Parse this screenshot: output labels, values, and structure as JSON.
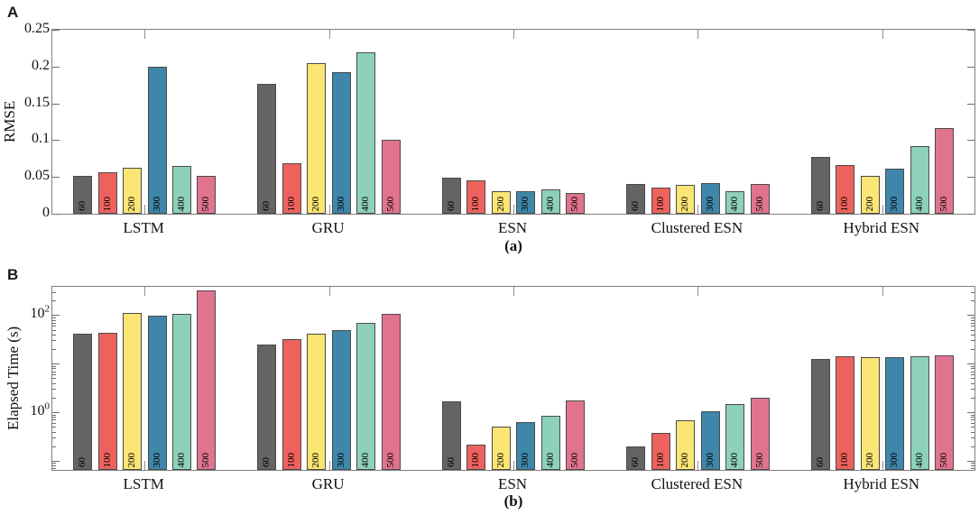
{
  "background": "#ffffff",
  "palette": {
    "60": "#646464",
    "100": "#ee625e",
    "200": "#fbe574",
    "300": "#3e86aa",
    "400": "#8dd0bc",
    "500": "#e0748f"
  },
  "style_colors": {
    "bar_edge": "#4a4a4a",
    "axis_box": "#7f7f7f",
    "text": "#111111"
  },
  "chart_data": [
    {
      "panel_label": "A",
      "caption": "(a)",
      "type": "bar",
      "yscale": "linear",
      "ylabel": "RMSE",
      "ylim": [
        0,
        0.25
      ],
      "grid": false,
      "legend": "none",
      "yticks": [
        {
          "value": 0,
          "label": "0"
        },
        {
          "value": 0.05,
          "label": "0.05"
        },
        {
          "value": 0.1,
          "label": "0.1"
        },
        {
          "value": 0.15,
          "label": "0.15"
        },
        {
          "value": 0.2,
          "label": "0.2"
        },
        {
          "value": 0.25,
          "label": "0.25"
        }
      ],
      "categories": [
        "LSTM",
        "GRU",
        "ESN",
        "Clustered ESN",
        "Hybrid ESN"
      ],
      "bar_size_labels": [
        "60",
        "100",
        "200",
        "300",
        "400",
        "500"
      ],
      "series": [
        {
          "name": "60",
          "values": [
            0.051,
            0.176,
            0.049,
            0.04,
            0.077
          ]
        },
        {
          "name": "100",
          "values": [
            0.056,
            0.069,
            0.046,
            0.036,
            0.066
          ]
        },
        {
          "name": "200",
          "values": [
            0.063,
            0.205,
            0.031,
            0.039,
            0.052
          ]
        },
        {
          "name": "300",
          "values": [
            0.2,
            0.193,
            0.031,
            0.042,
            0.061
          ]
        },
        {
          "name": "400",
          "values": [
            0.065,
            0.22,
            0.033,
            0.031,
            0.092
          ]
        },
        {
          "name": "500",
          "values": [
            0.051,
            0.1,
            0.028,
            0.041,
            0.116
          ]
        }
      ]
    },
    {
      "panel_label": "B",
      "caption": "(b)",
      "type": "bar",
      "yscale": "log",
      "ylabel": "Elapsed Time (s)",
      "ylim": [
        0.065,
        380
      ],
      "grid": false,
      "legend": "none",
      "yticks": [
        {
          "value": 1,
          "label": "10^0"
        },
        {
          "value": 100,
          "label": "10^2"
        }
      ],
      "categories": [
        "LSTM",
        "GRU",
        "ESN",
        "Clustered ESN",
        "Hybrid ESN"
      ],
      "bar_size_labels": [
        "60",
        "100",
        "200",
        "300",
        "400",
        "500"
      ],
      "series": [
        {
          "name": "60",
          "values": [
            41,
            25,
            1.68,
            0.2,
            12.6
          ]
        },
        {
          "name": "100",
          "values": [
            43,
            32,
            0.22,
            0.38,
            14.0
          ]
        },
        {
          "name": "200",
          "values": [
            108,
            42,
            0.5,
            0.68,
            13.4
          ]
        },
        {
          "name": "300",
          "values": [
            96,
            50,
            0.62,
            1.05,
            13.8
          ]
        },
        {
          "name": "400",
          "values": [
            105,
            70,
            0.85,
            1.45,
            14.4
          ]
        },
        {
          "name": "500",
          "values": [
            320,
            104,
            1.75,
            1.95,
            14.8
          ]
        }
      ]
    }
  ]
}
